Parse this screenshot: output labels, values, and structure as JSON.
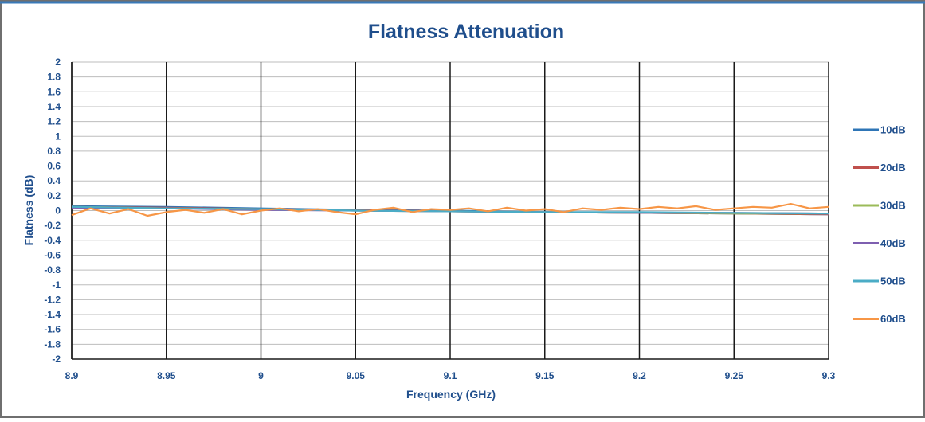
{
  "chart_data": {
    "type": "line",
    "title": "Flatness Attenuation",
    "xlabel": "Frequency (GHz)",
    "ylabel": "Flatness (dB)",
    "xlim": [
      8.9,
      9.3
    ],
    "ylim": [
      -2,
      2
    ],
    "x_ticks": [
      "8.9",
      "8.95",
      "9",
      "9.05",
      "9.1",
      "9.15",
      "9.2",
      "9.25",
      "9.3"
    ],
    "y_ticks": [
      "2",
      "1.8",
      "1.6",
      "1.4",
      "1.2",
      "1",
      "0.8",
      "0.6",
      "0.4",
      "0.2",
      "0",
      "-0.2",
      "-0.4",
      "-0.6",
      "-0.8",
      "-1",
      "-1.2",
      "-1.4",
      "-1.6",
      "-1.8",
      "-2"
    ],
    "grid": true,
    "legend_position": "right",
    "series": [
      {
        "name": "10dB",
        "color": "#2e75b6",
        "x": [
          8.9,
          8.95,
          9.0,
          9.05,
          9.1,
          9.15,
          9.2,
          9.25,
          9.3
        ],
        "values": [
          0.06,
          0.05,
          0.03,
          0.01,
          0.0,
          -0.02,
          -0.03,
          -0.04,
          -0.05
        ]
      },
      {
        "name": "20dB",
        "color": "#c0504d",
        "x": [
          8.9,
          8.95,
          9.0,
          9.05,
          9.1,
          9.15,
          9.2,
          9.25,
          9.3
        ],
        "values": [
          0.05,
          0.04,
          0.02,
          0.01,
          -0.01,
          -0.02,
          -0.03,
          -0.04,
          -0.05
        ]
      },
      {
        "name": "30dB",
        "color": "#9bbb59",
        "x": [
          8.9,
          8.95,
          9.0,
          9.05,
          9.1,
          9.15,
          9.2,
          9.25,
          9.3
        ],
        "values": [
          0.05,
          0.03,
          0.02,
          0.0,
          -0.01,
          -0.02,
          -0.03,
          -0.04,
          -0.04
        ]
      },
      {
        "name": "40dB",
        "color": "#7e5fb0",
        "x": [
          8.9,
          8.95,
          9.0,
          9.05,
          9.1,
          9.15,
          9.2,
          9.25,
          9.3
        ],
        "values": [
          0.04,
          0.03,
          0.01,
          0.0,
          -0.01,
          -0.02,
          -0.03,
          -0.03,
          -0.04
        ]
      },
      {
        "name": "50dB",
        "color": "#4bacc6",
        "x": [
          8.9,
          8.95,
          9.0,
          9.05,
          9.1,
          9.15,
          9.2,
          9.25,
          9.3
        ],
        "values": [
          0.05,
          0.03,
          0.02,
          0.0,
          -0.01,
          -0.02,
          -0.02,
          -0.03,
          -0.04
        ]
      },
      {
        "name": "60dB",
        "color": "#f79646",
        "x": [
          8.9,
          8.91,
          8.92,
          8.93,
          8.94,
          8.95,
          8.96,
          8.97,
          8.98,
          8.99,
          9.0,
          9.01,
          9.02,
          9.03,
          9.04,
          9.05,
          9.06,
          9.07,
          9.08,
          9.09,
          9.1,
          9.11,
          9.12,
          9.13,
          9.14,
          9.15,
          9.16,
          9.17,
          9.18,
          9.19,
          9.2,
          9.21,
          9.22,
          9.23,
          9.24,
          9.25,
          9.26,
          9.27,
          9.28,
          9.29,
          9.3
        ],
        "values": [
          -0.06,
          0.03,
          -0.04,
          0.02,
          -0.07,
          -0.02,
          0.01,
          -0.03,
          0.02,
          -0.05,
          0.0,
          0.03,
          -0.01,
          0.02,
          -0.02,
          -0.05,
          0.01,
          0.04,
          -0.02,
          0.02,
          0.01,
          0.03,
          -0.01,
          0.04,
          0.0,
          0.02,
          -0.02,
          0.03,
          0.01,
          0.04,
          0.02,
          0.05,
          0.03,
          0.06,
          0.01,
          0.03,
          0.05,
          0.04,
          0.09,
          0.03,
          0.05
        ]
      }
    ]
  }
}
